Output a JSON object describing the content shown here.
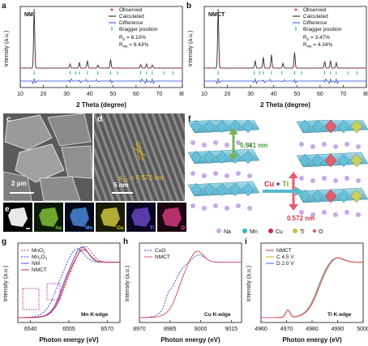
{
  "panels": {
    "a": {
      "letter": "a",
      "tag": "NM",
      "legend": [
        "Observed",
        "Calculated",
        "Difference",
        "Bragger position"
      ],
      "rp": "R",
      "rp_sub": "p",
      "rp_val": " = 6.10%",
      "rwp": "R",
      "rwp_sub": "wp",
      "rwp_val": " = 8.43%",
      "ylabel": "Intensity (a.u.)",
      "xlabel": "2 Theta (degree)",
      "xticks": [
        "10",
        "20",
        "30",
        "40",
        "50",
        "60",
        "70",
        "80"
      ]
    },
    "b": {
      "letter": "b",
      "tag": "NMCT",
      "legend": [
        "Observed",
        "Calculated",
        "Difference",
        "Bragger position"
      ],
      "rp": "R",
      "rp_sub": "p",
      "rp_val": " = 3.47%",
      "rwp": "R",
      "rwp_sub": "wp",
      "rwp_val": " = 4.34%",
      "ylabel": "Intensity (a.u.)",
      "xlabel": "2 Theta (degree)",
      "xticks": [
        "10",
        "20",
        "30",
        "40",
        "50",
        "60",
        "70",
        "80"
      ]
    },
    "c": {
      "letter": "c",
      "scale": "2 μm"
    },
    "d": {
      "letter": "d",
      "scale": "5 nm",
      "dspacing": "d",
      "dspacing_sub": "002",
      "dspacing_val": " = 0.572 nm"
    },
    "e": {
      "letter": "e",
      "elements": [
        "Na",
        "Mn",
        "Cu",
        "Ti",
        "O"
      ]
    },
    "f": {
      "letter": "f",
      "top_spacing": "0.541 nm",
      "bottom_spacing": "0.572 nm",
      "dopant_a": "Cu",
      "plus": " + ",
      "dopant_b": "Ti",
      "legend": [
        "Na",
        "Mn",
        "Cu",
        "Ti",
        "O"
      ]
    },
    "g": {
      "letter": "g",
      "legend": [
        "MnO",
        "Mn",
        "NM",
        "NMCT"
      ],
      "mno2_sub": "2",
      "mn2o3_sub": "2",
      "mn2o3_tail": "O",
      "mn2o3_sub2": "3",
      "edge": "Mn K-edge",
      "ylabel": "Intensity (a.u.)",
      "xlabel": "Photon energy (eV)",
      "xticks": [
        "6540",
        "6555",
        "6570"
      ]
    },
    "h": {
      "letter": "h",
      "legend": [
        "CuO",
        "NMCT"
      ],
      "edge": "Cu K-edge",
      "ylabel": "Intensity (a.u.)",
      "xlabel": "Photon energy (eV)",
      "xticks": [
        "8970",
        "8985",
        "9000",
        "9015"
      ]
    },
    "i": {
      "letter": "i",
      "legend": [
        "NMCT",
        "C 4.5 V",
        "D 2.0 V"
      ],
      "edge": "Ti K-edge",
      "ylabel": "Intensity (a.u.)",
      "xlabel": "Photon energy (eV)",
      "xticks": [
        "4960",
        "4970",
        "4980",
        "4990",
        "5000"
      ]
    }
  },
  "colors": {
    "observed": "#e0455a",
    "calculated": "#111111",
    "difference": "#2244dd",
    "bragg": "#18b08a",
    "mn": "#3fb0c8",
    "cu": "#e06060",
    "ti": "#b8c860",
    "na": "#c8a8e8",
    "o": "#e05050"
  },
  "chart_data": [
    {
      "type": "line",
      "title": "",
      "xlabel": "2 Theta (degree)",
      "ylabel": "Intensity (a.u.)",
      "xlim": [
        10,
        80
      ],
      "series": [
        {
          "name": "Observed"
        },
        {
          "name": "Calculated"
        },
        {
          "name": "Difference"
        },
        {
          "name": "Bragger position"
        }
      ],
      "peaks": [
        {
          "x": 16,
          "y": 1.0
        },
        {
          "x": 31.5,
          "y": 0.07
        },
        {
          "x": 35.5,
          "y": 0.09
        },
        {
          "x": 39,
          "y": 0.12
        },
        {
          "x": 43.5,
          "y": 0.05
        },
        {
          "x": 49,
          "y": 0.14
        },
        {
          "x": 62,
          "y": 0.06
        },
        {
          "x": 64.5,
          "y": 0.07
        },
        {
          "x": 67,
          "y": 0.05
        }
      ]
    },
    {
      "type": "line",
      "title": "",
      "xlabel": "2 Theta (degree)",
      "ylabel": "Intensity (a.u.)",
      "xlim": [
        10,
        80
      ],
      "series": [
        {
          "name": "Observed"
        },
        {
          "name": "Calculated"
        },
        {
          "name": "Difference"
        },
        {
          "name": "Bragger position"
        }
      ],
      "peaks": [
        {
          "x": 16,
          "y": 1.0
        },
        {
          "x": 32,
          "y": 0.12
        },
        {
          "x": 35.5,
          "y": 0.18
        },
        {
          "x": 39,
          "y": 0.22
        },
        {
          "x": 44,
          "y": 0.08
        },
        {
          "x": 49,
          "y": 0.26
        },
        {
          "x": 62,
          "y": 0.11
        },
        {
          "x": 64.5,
          "y": 0.12
        },
        {
          "x": 67,
          "y": 0.09
        }
      ]
    },
    {
      "type": "line",
      "xlabel": "Photon energy (eV)",
      "ylabel": "Intensity (a.u.)",
      "xlim": [
        6535,
        6575
      ],
      "series": [
        {
          "name": "MnO2"
        },
        {
          "name": "Mn2O3"
        },
        {
          "name": "NM"
        },
        {
          "name": "NMCT"
        }
      ]
    },
    {
      "type": "line",
      "xlabel": "Photon energy (eV)",
      "ylabel": "Intensity (a.u.)",
      "xlim": [
        8970,
        9020
      ],
      "series": [
        {
          "name": "CuO"
        },
        {
          "name": "NMCT"
        }
      ]
    },
    {
      "type": "line",
      "xlabel": "Photon energy (eV)",
      "ylabel": "Intensity (a.u.)",
      "xlim": [
        4960,
        5000
      ],
      "series": [
        {
          "name": "NMCT"
        },
        {
          "name": "C 4.5 V"
        },
        {
          "name": "D 2.0 V"
        }
      ]
    }
  ]
}
